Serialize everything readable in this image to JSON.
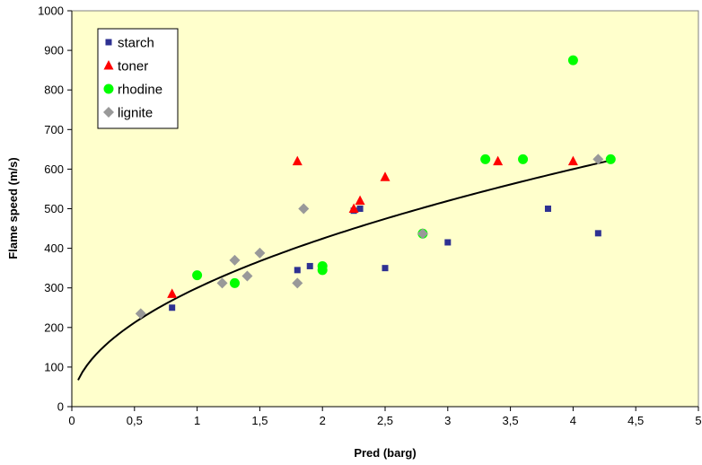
{
  "chart_data": {
    "type": "scatter",
    "xlabel": "Pred (barg)",
    "ylabel": "Flame speed (m/s)",
    "xlim": [
      0,
      5
    ],
    "ylim": [
      0,
      1000
    ],
    "x_ticks": [
      "0",
      "0,5",
      "1",
      "1,5",
      "2",
      "2,5",
      "3",
      "3,5",
      "4",
      "4,5",
      "5"
    ],
    "y_ticks": [
      "0",
      "100",
      "200",
      "300",
      "400",
      "500",
      "600",
      "700",
      "800",
      "900",
      "1000"
    ],
    "grid": false,
    "legend_position": "top-left",
    "plot_background": "#FFFFCC",
    "series": [
      {
        "name": "starch",
        "marker": "square",
        "color": "#2E3192",
        "points": [
          [
            0.8,
            250
          ],
          [
            1.8,
            345
          ],
          [
            1.9,
            355
          ],
          [
            2.25,
            495
          ],
          [
            2.3,
            500
          ],
          [
            2.5,
            350
          ],
          [
            3.0,
            415
          ],
          [
            3.8,
            500
          ],
          [
            4.2,
            438
          ]
        ]
      },
      {
        "name": "toner",
        "marker": "triangle",
        "color": "#FF0000",
        "points": [
          [
            0.8,
            285
          ],
          [
            1.8,
            620
          ],
          [
            2.25,
            500
          ],
          [
            2.3,
            520
          ],
          [
            2.5,
            580
          ],
          [
            3.4,
            620
          ],
          [
            4.0,
            620
          ]
        ]
      },
      {
        "name": "rhodine",
        "marker": "circle",
        "color": "#00FF00",
        "points": [
          [
            1.0,
            332
          ],
          [
            1.3,
            312
          ],
          [
            2.0,
            355
          ],
          [
            2.0,
            345
          ],
          [
            2.8,
            437
          ],
          [
            3.3,
            625
          ],
          [
            3.6,
            625
          ],
          [
            4.0,
            875
          ],
          [
            4.3,
            625
          ]
        ]
      },
      {
        "name": "lignite",
        "marker": "diamond",
        "color": "#999999",
        "points": [
          [
            0.55,
            235
          ],
          [
            1.2,
            312
          ],
          [
            1.3,
            370
          ],
          [
            1.4,
            330
          ],
          [
            1.5,
            388
          ],
          [
            1.8,
            312
          ],
          [
            1.85,
            500
          ],
          [
            2.8,
            437
          ],
          [
            4.2,
            625
          ]
        ]
      }
    ],
    "trendline": {
      "type": "power",
      "color": "#000000",
      "coef": 300,
      "exponent": 0.5,
      "x_range": [
        0.05,
        4.3
      ]
    }
  }
}
